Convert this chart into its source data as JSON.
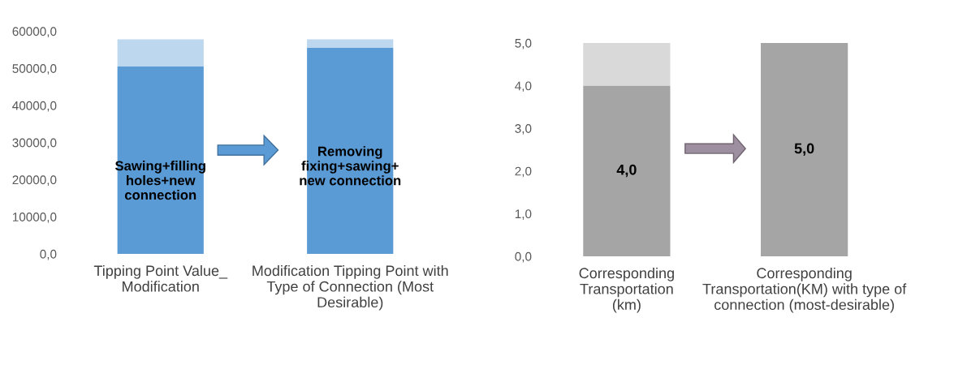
{
  "chart_data": [
    {
      "type": "bar",
      "stacked": true,
      "categories": [
        "Tipping Point Value_\nModification",
        "Modification Tipping Point with\nType of Connection (Most\nDesirable)"
      ],
      "series": [
        {
          "color": "#5b9bd5",
          "values": [
            50500,
            55500
          ]
        },
        {
          "color": "#bdd7ee",
          "values": [
            7300,
            2300
          ]
        }
      ],
      "ylim": [
        0,
        60000
      ],
      "yticks": [
        {
          "value": 0,
          "label": "0,0"
        },
        {
          "value": 10000,
          "label": "10000,0"
        },
        {
          "value": 20000,
          "label": "20000,0"
        },
        {
          "value": 30000,
          "label": "30000,0"
        },
        {
          "value": 40000,
          "label": "40000,0"
        },
        {
          "value": 50000,
          "label": "50000,0"
        },
        {
          "value": 60000,
          "label": "60000,0"
        }
      ],
      "annotations": [
        "Sawing+filling\nholes+new\nconnection",
        "Removing\nfixing+sawing+\nnew connection"
      ],
      "grid": false,
      "legend": false
    },
    {
      "type": "bar",
      "stacked": true,
      "categories": [
        "Corresponding\nTransportation\n(km)",
        "Corresponding\nTransportation(KM) with type of\nconnection (most-desirable)"
      ],
      "series": [
        {
          "color": "#a5a5a5",
          "values": [
            4.0,
            5.0
          ],
          "value_labels": [
            "4,0",
            "5,0"
          ]
        },
        {
          "color": "#d9d9d9",
          "values": [
            1.0,
            0
          ]
        }
      ],
      "ylim": [
        0,
        5
      ],
      "yticks": [
        {
          "value": 0,
          "label": "0,0"
        },
        {
          "value": 1,
          "label": "1,0"
        },
        {
          "value": 2,
          "label": "2,0"
        },
        {
          "value": 3,
          "label": "3,0"
        },
        {
          "value": 4,
          "label": "4,0"
        },
        {
          "value": 5,
          "label": "5,0"
        }
      ],
      "grid": false,
      "legend": false
    }
  ]
}
